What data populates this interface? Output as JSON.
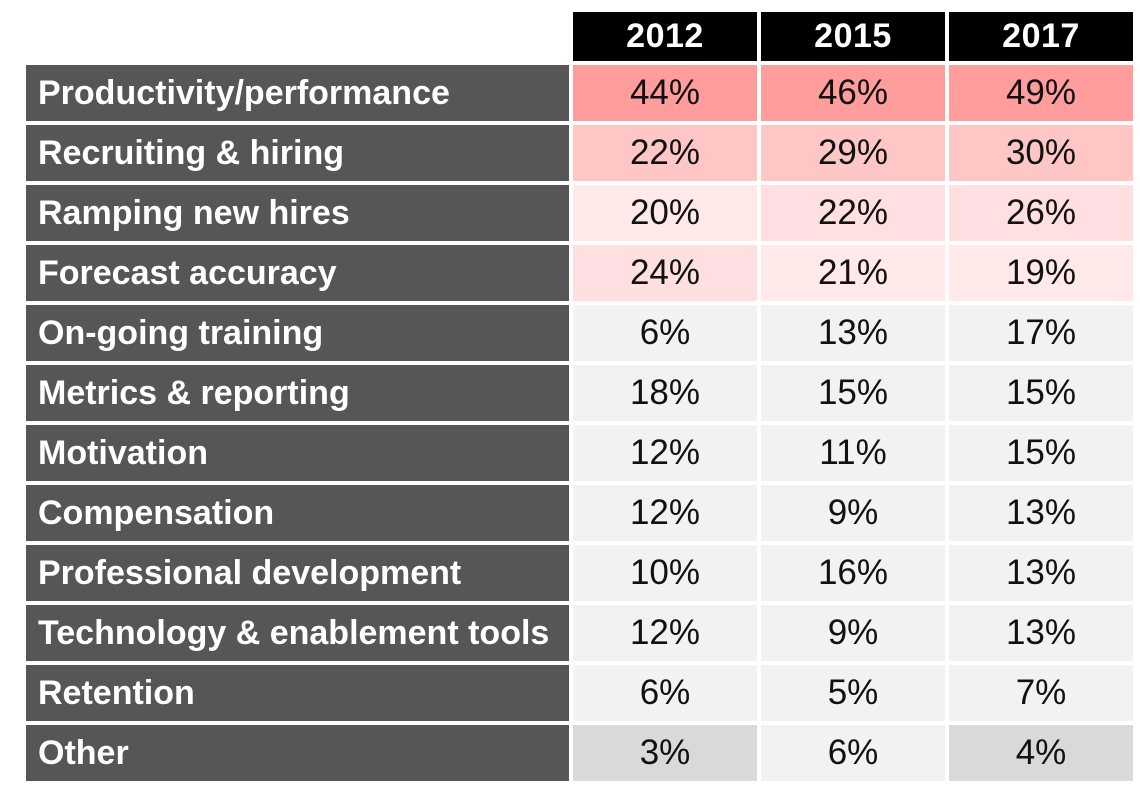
{
  "chart_data": {
    "type": "table",
    "columns": [
      "2012",
      "2015",
      "2017"
    ],
    "rows": [
      {
        "label": "Productivity/performance",
        "values": [
          "44%",
          "46%",
          "49%"
        ],
        "colors": [
          "#ff9c9c",
          "#ff9c9c",
          "#ff9c9c"
        ]
      },
      {
        "label": "Recruiting & hiring",
        "values": [
          "22%",
          "29%",
          "30%"
        ],
        "colors": [
          "#ffc6c6",
          "#ffc6c6",
          "#ffc6c6"
        ]
      },
      {
        "label": "Ramping new hires",
        "values": [
          "20%",
          "22%",
          "26%"
        ],
        "colors": [
          "#ffe9e9",
          "#ffdfdf",
          "#ffdfdf"
        ]
      },
      {
        "label": "Forecast accuracy",
        "values": [
          "24%",
          "21%",
          "19%"
        ],
        "colors": [
          "#ffdfdf",
          "#ffe9e9",
          "#ffe9e9"
        ]
      },
      {
        "label": "On-going training",
        "values": [
          "6%",
          "13%",
          "17%"
        ],
        "colors": [
          "#f2f2f2",
          "#f2f2f2",
          "#f2f2f2"
        ]
      },
      {
        "label": "Metrics & reporting",
        "values": [
          "18%",
          "15%",
          "15%"
        ],
        "colors": [
          "#f2f2f2",
          "#f2f2f2",
          "#f2f2f2"
        ]
      },
      {
        "label": "Motivation",
        "values": [
          "12%",
          "11%",
          "15%"
        ],
        "colors": [
          "#f2f2f2",
          "#f2f2f2",
          "#f2f2f2"
        ]
      },
      {
        "label": "Compensation",
        "values": [
          "12%",
          "9%",
          "13%"
        ],
        "colors": [
          "#f2f2f2",
          "#f2f2f2",
          "#f2f2f2"
        ]
      },
      {
        "label": "Professional development",
        "values": [
          "10%",
          "16%",
          "13%"
        ],
        "colors": [
          "#f2f2f2",
          "#f2f2f2",
          "#f2f2f2"
        ]
      },
      {
        "label": "Technology & enablement tools",
        "values": [
          "12%",
          "9%",
          "13%"
        ],
        "colors": [
          "#f2f2f2",
          "#f2f2f2",
          "#f2f2f2"
        ]
      },
      {
        "label": "Retention",
        "values": [
          "6%",
          "5%",
          "7%"
        ],
        "colors": [
          "#f2f2f2",
          "#f2f2f2",
          "#f2f2f2"
        ]
      },
      {
        "label": "Other",
        "values": [
          "3%",
          "6%",
          "4%"
        ],
        "colors": [
          "#d9d9d9",
          "#f2f2f2",
          "#d9d9d9"
        ]
      }
    ],
    "header_color": "#000000",
    "label_color": "#565656"
  }
}
